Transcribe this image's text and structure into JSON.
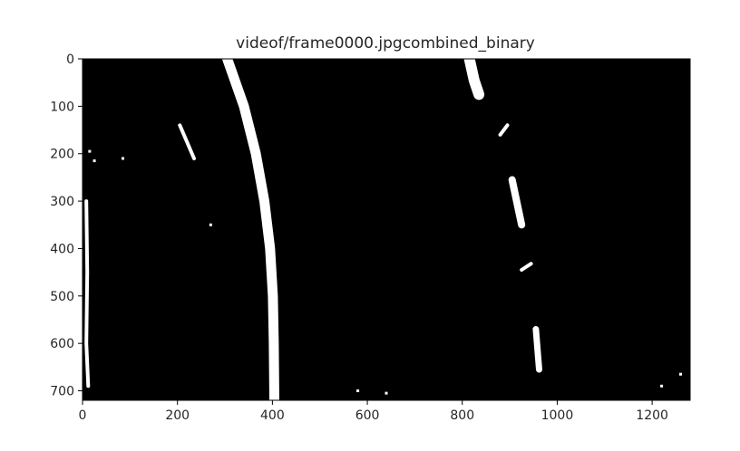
{
  "chart_data": {
    "type": "image",
    "title": "videof/frame0000.jpgcombined_binary",
    "xlabel": "",
    "ylabel": "",
    "image_size": [
      1280,
      720
    ],
    "xlim": [
      0,
      1280
    ],
    "ylim": [
      720,
      0
    ],
    "y_inverted": true,
    "x_ticks": [
      "0",
      "200",
      "400",
      "600",
      "800",
      "1000",
      "1200"
    ],
    "x_tick_values": [
      0,
      200,
      400,
      600,
      800,
      1000,
      1200
    ],
    "y_ticks": [
      "0",
      "100",
      "200",
      "300",
      "400",
      "500",
      "600",
      "700"
    ],
    "y_tick_values": [
      0,
      100,
      200,
      300,
      400,
      500,
      600,
      700
    ],
    "colormap": "gray",
    "background_color": "#000000",
    "foreground_color": "#ffffff",
    "features": [
      {
        "name": "left-lane-line",
        "points": [
          [
            305,
            0
          ],
          [
            340,
            100
          ],
          [
            365,
            200
          ],
          [
            383,
            300
          ],
          [
            395,
            400
          ],
          [
            401,
            500
          ],
          [
            403,
            600
          ],
          [
            404,
            720
          ]
        ]
      },
      {
        "name": "right-lane-upper-blob",
        "points": [
          [
            815,
            0
          ],
          [
            825,
            45
          ],
          [
            835,
            75
          ]
        ]
      },
      {
        "name": "right-lane-dash-1",
        "points": [
          [
            880,
            160
          ],
          [
            895,
            140
          ]
        ]
      },
      {
        "name": "right-lane-dash-2",
        "points": [
          [
            905,
            255
          ],
          [
            925,
            350
          ]
        ]
      },
      {
        "name": "right-lane-dash-3",
        "points": [
          [
            925,
            445
          ],
          [
            945,
            432
          ]
        ]
      },
      {
        "name": "right-lane-dash-4",
        "points": [
          [
            955,
            570
          ],
          [
            962,
            655
          ]
        ]
      },
      {
        "name": "left-edge-speckle",
        "points": [
          [
            8,
            300
          ],
          [
            10,
            450
          ],
          [
            8,
            600
          ],
          [
            12,
            690
          ]
        ]
      },
      {
        "name": "upper-left-streak",
        "points": [
          [
            205,
            140
          ],
          [
            235,
            210
          ]
        ]
      },
      {
        "name": "small-marks",
        "points": [
          [
            15,
            195
          ],
          [
            25,
            215
          ],
          [
            85,
            210
          ],
          [
            270,
            350
          ],
          [
            580,
            700
          ],
          [
            640,
            705
          ],
          [
            1220,
            690
          ],
          [
            1260,
            665
          ]
        ]
      }
    ]
  }
}
